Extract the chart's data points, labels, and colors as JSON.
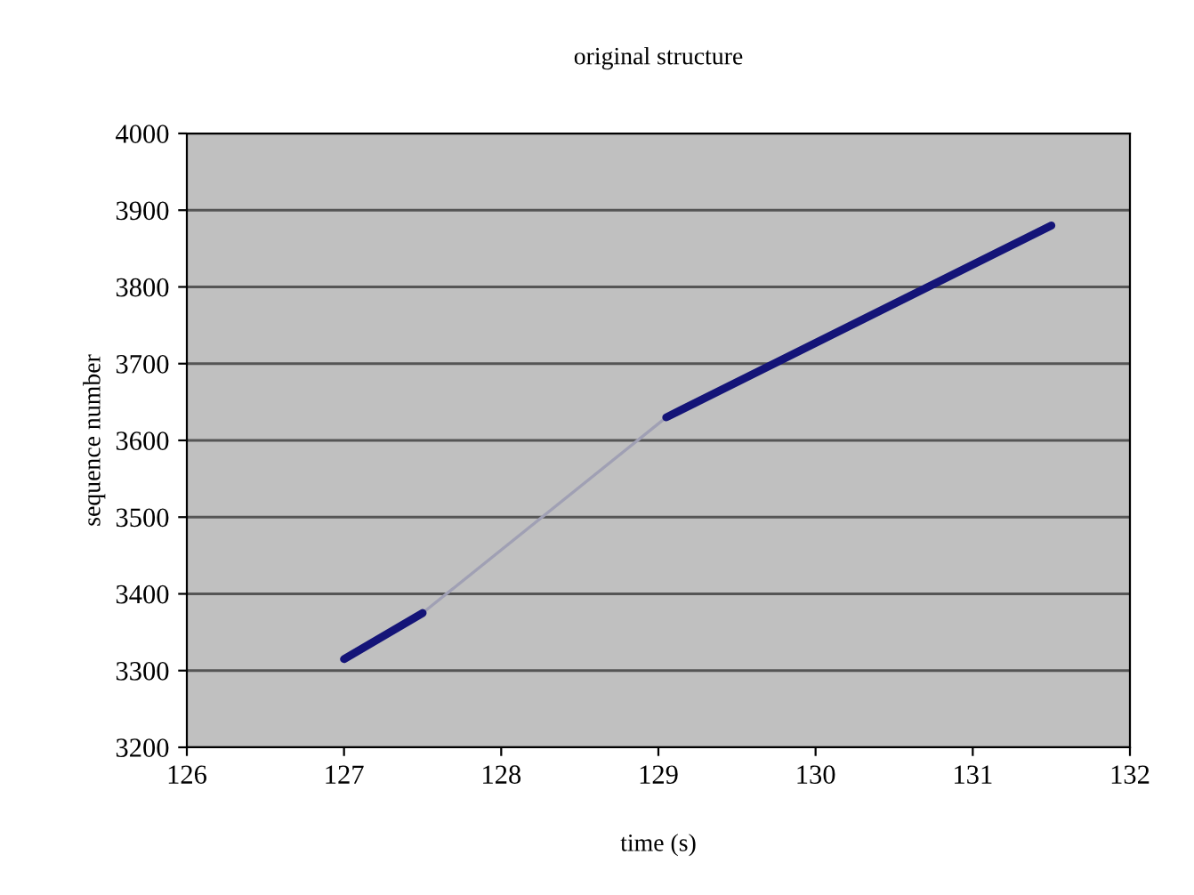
{
  "chart_data": {
    "type": "line",
    "title": "original structure",
    "xlabel": "time (s)",
    "ylabel": "sequence number",
    "series": [
      {
        "color": "#a0a0b4",
        "x": [
          127.5,
          129.05
        ],
        "values": [
          3375,
          3630
        ]
      },
      {
        "color": "#141478",
        "x": [
          127,
          127.5,
          128.3,
          129.05,
          131.5
        ],
        "values": [
          3315,
          3375,
          null,
          3630,
          3880
        ]
      }
    ],
    "xlim": [
      126,
      132
    ],
    "xticks": [
      126,
      127,
      128,
      129,
      130,
      131,
      132
    ],
    "ylim": [
      3200,
      4000
    ],
    "yticks": [
      3200,
      3300,
      3400,
      3500,
      3600,
      3700,
      3800,
      3900,
      4000
    ],
    "grid": "y",
    "legend": false,
    "marker": "none",
    "line_style": "solid"
  }
}
